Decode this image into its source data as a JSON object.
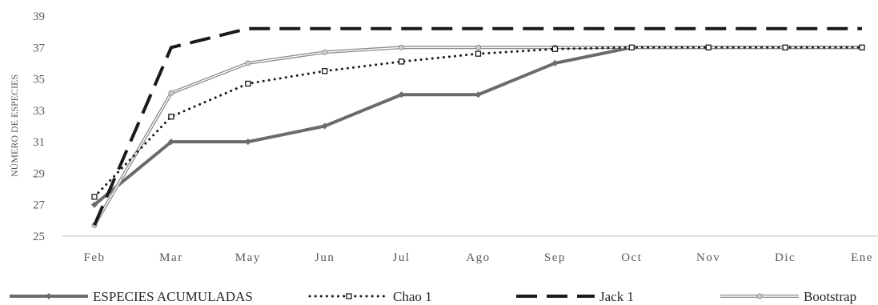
{
  "chart_data": {
    "type": "line",
    "title": "",
    "xlabel": "",
    "ylabel": "NÚMERO DE ESPECIES",
    "ylim": [
      25,
      39
    ],
    "yticks": [
      25,
      27,
      29,
      31,
      33,
      35,
      37,
      39
    ],
    "categories": [
      "Feb",
      "Mar",
      "May",
      "Jun",
      "Jul",
      "Ago",
      "Sep",
      "Oct",
      "Nov",
      "Dic",
      "Ene"
    ],
    "grid": false,
    "legend_position": "bottom",
    "series": [
      {
        "name": "ESPECIES ACUMULADAS",
        "style": "solid-thick-diamond",
        "color": "#6b6b6b",
        "values": [
          27,
          31,
          31,
          32,
          34,
          34,
          36,
          37,
          37,
          37,
          37
        ]
      },
      {
        "name": "Chao 1",
        "style": "dotted-square",
        "color": "#1a1a1a",
        "values": [
          27.5,
          32.6,
          34.7,
          35.5,
          36.1,
          36.6,
          36.9,
          37.0,
          37.0,
          37.0,
          37.0
        ]
      },
      {
        "name": "Jack 1",
        "style": "long-dash",
        "color": "#1a1a1a",
        "values": [
          25.7,
          37.0,
          38.2,
          38.2,
          38.2,
          38.2,
          38.2,
          38.2,
          38.2,
          38.2,
          38.2
        ]
      },
      {
        "name": "Bootstrap",
        "style": "double-line-circle",
        "color": "#8c8c8c",
        "values": [
          25.7,
          34.1,
          36.0,
          36.7,
          37.0,
          37.0,
          37.0,
          37.0,
          37.0,
          37.0,
          37.0
        ]
      }
    ]
  }
}
